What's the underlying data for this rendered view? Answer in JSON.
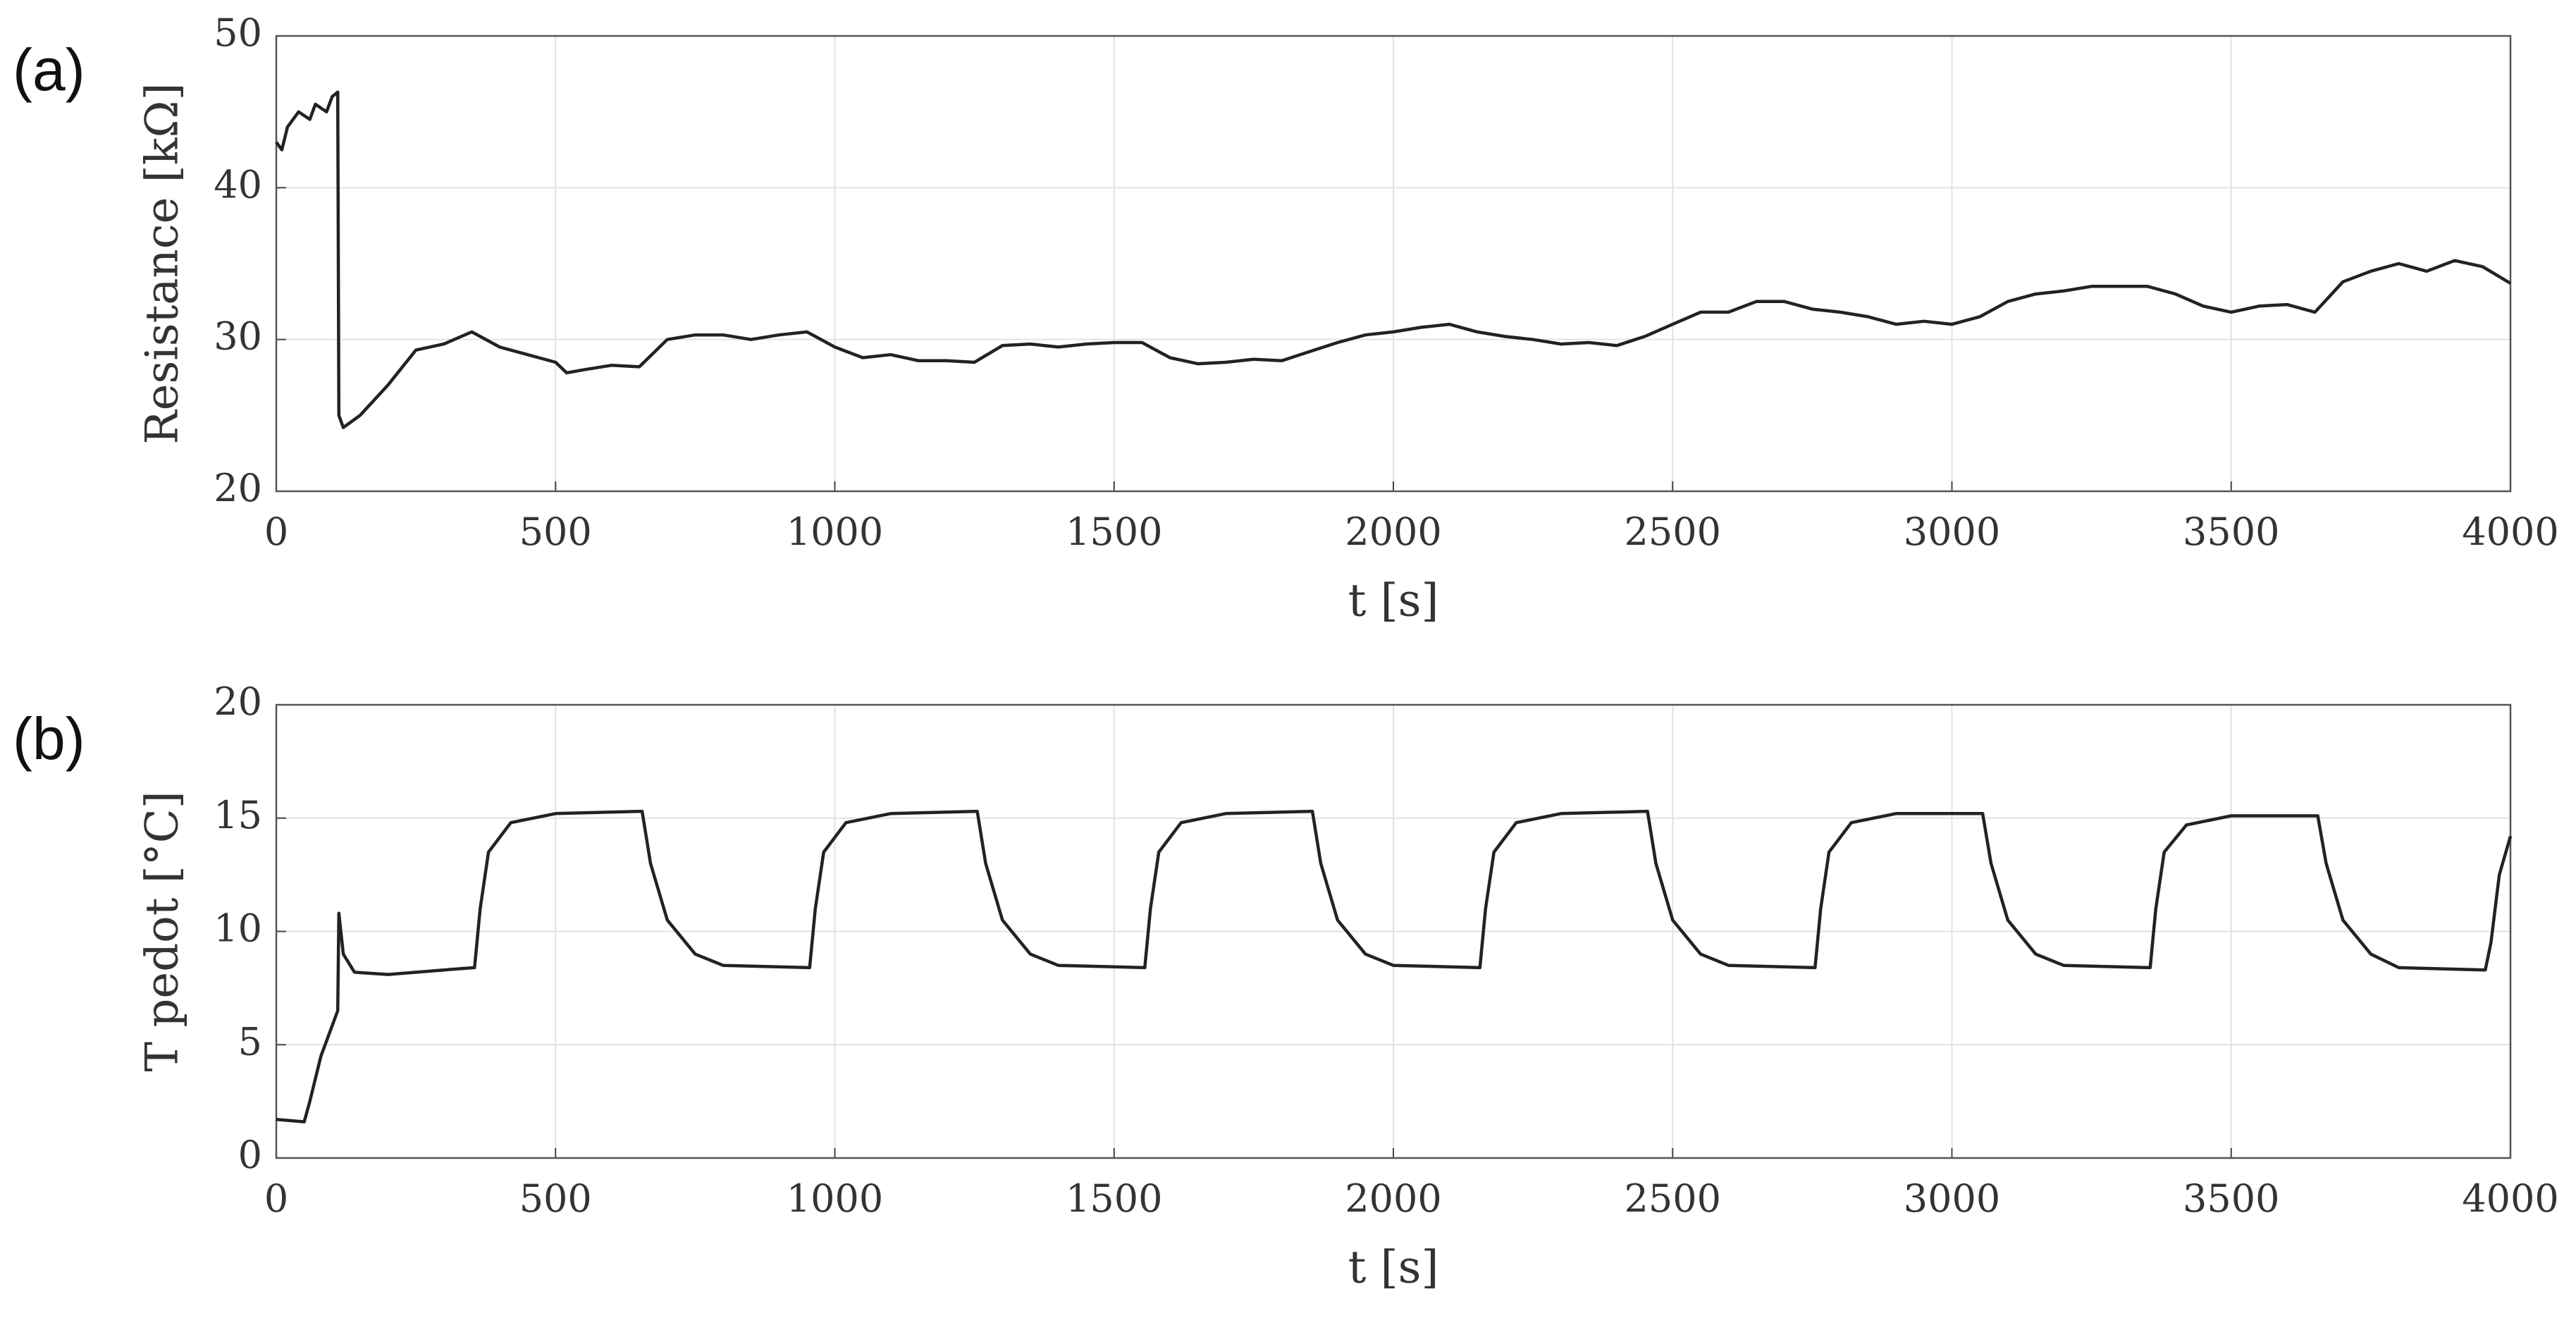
{
  "chart_data": [
    {
      "type": "line",
      "panel_label": "(a)",
      "xlabel": "t [s]",
      "ylabel": "Resistance [kΩ]",
      "xlim": [
        0,
        4000
      ],
      "xticks": [
        0,
        500,
        1000,
        1500,
        2000,
        2500,
        3000,
        3500,
        4000
      ],
      "ylim": [
        20,
        50
      ],
      "yticks": [
        20,
        30,
        40,
        50
      ],
      "grid": true,
      "x": [
        0,
        10,
        20,
        40,
        60,
        70,
        90,
        100,
        110,
        112,
        120,
        150,
        200,
        250,
        300,
        350,
        400,
        450,
        500,
        520,
        550,
        600,
        650,
        700,
        750,
        800,
        850,
        900,
        950,
        1000,
        1050,
        1100,
        1150,
        1200,
        1250,
        1300,
        1350,
        1400,
        1450,
        1500,
        1550,
        1600,
        1650,
        1700,
        1750,
        1800,
        1850,
        1900,
        1950,
        2000,
        2050,
        2100,
        2150,
        2200,
        2250,
        2300,
        2350,
        2400,
        2450,
        2500,
        2550,
        2600,
        2650,
        2700,
        2750,
        2800,
        2850,
        2900,
        2950,
        3000,
        3050,
        3100,
        3150,
        3200,
        3250,
        3300,
        3350,
        3400,
        3450,
        3500,
        3550,
        3600,
        3650,
        3700,
        3750,
        3800,
        3850,
        3900,
        3950,
        4000
      ],
      "series": [
        {
          "name": "Resistance",
          "color": "#222222",
          "values": [
            43,
            42.5,
            44,
            45,
            44.5,
            45.5,
            45,
            46,
            46.3,
            25,
            24.2,
            25,
            27,
            29.3,
            29.7,
            30.5,
            29.5,
            29,
            28.5,
            27.8,
            28,
            28.3,
            28.2,
            30,
            30.3,
            30.3,
            30,
            30.3,
            30.5,
            29.5,
            28.8,
            29,
            28.6,
            28.6,
            28.5,
            29.6,
            29.7,
            29.5,
            29.7,
            29.8,
            29.8,
            28.8,
            28.4,
            28.5,
            28.7,
            28.6,
            29.2,
            29.8,
            30.3,
            30.5,
            30.8,
            31,
            30.5,
            30.2,
            30,
            29.7,
            29.8,
            29.6,
            30.2,
            31,
            31.8,
            31.8,
            32.5,
            32.5,
            32,
            31.8,
            31.5,
            31,
            31.2,
            31,
            31.5,
            32.5,
            33,
            33.2,
            33.5,
            33.5,
            33.5,
            33,
            32.2,
            31.8,
            32.2,
            32.3,
            31.8,
            33.8,
            34.5,
            35,
            34.5,
            35.2,
            34.8,
            33.7
          ]
        }
      ]
    },
    {
      "type": "line",
      "panel_label": "(b)",
      "xlabel": "t [s]",
      "ylabel": "T pedot [°C]",
      "xlim": [
        0,
        4000
      ],
      "xticks": [
        0,
        500,
        1000,
        1500,
        2000,
        2500,
        3000,
        3500,
        4000
      ],
      "ylim": [
        0,
        20
      ],
      "yticks": [
        0,
        5,
        10,
        15,
        20
      ],
      "grid": true,
      "x": [
        0,
        50,
        60,
        80,
        110,
        112,
        120,
        140,
        200,
        300,
        355,
        365,
        380,
        420,
        500,
        655,
        670,
        700,
        750,
        800,
        955,
        965,
        980,
        1020,
        1100,
        1255,
        1270,
        1300,
        1350,
        1400,
        1555,
        1565,
        1580,
        1620,
        1700,
        1855,
        1870,
        1900,
        1950,
        2000,
        2155,
        2165,
        2180,
        2220,
        2300,
        2455,
        2470,
        2500,
        2550,
        2600,
        2755,
        2765,
        2780,
        2820,
        2900,
        3055,
        3070,
        3100,
        3150,
        3200,
        3355,
        3365,
        3380,
        3420,
        3500,
        3655,
        3670,
        3700,
        3750,
        3800,
        3955,
        3965,
        3980,
        4000
      ],
      "series": [
        {
          "name": "T pedot",
          "color": "#222222",
          "values": [
            1.7,
            1.6,
            2.5,
            4.5,
            6.5,
            10.8,
            9,
            8.2,
            8.1,
            8.3,
            8.4,
            11,
            13.5,
            14.8,
            15.2,
            15.3,
            13,
            10.5,
            9,
            8.5,
            8.4,
            11,
            13.5,
            14.8,
            15.2,
            15.3,
            13,
            10.5,
            9,
            8.5,
            8.4,
            11,
            13.5,
            14.8,
            15.2,
            15.3,
            13,
            10.5,
            9,
            8.5,
            8.4,
            11,
            13.5,
            14.8,
            15.2,
            15.3,
            13,
            10.5,
            9,
            8.5,
            8.4,
            11,
            13.5,
            14.8,
            15.2,
            15.2,
            13,
            10.5,
            9,
            8.5,
            8.4,
            11,
            13.5,
            14.7,
            15.1,
            15.1,
            13,
            10.5,
            9,
            8.4,
            8.3,
            9.5,
            12.5,
            14.2
          ]
        }
      ]
    }
  ]
}
